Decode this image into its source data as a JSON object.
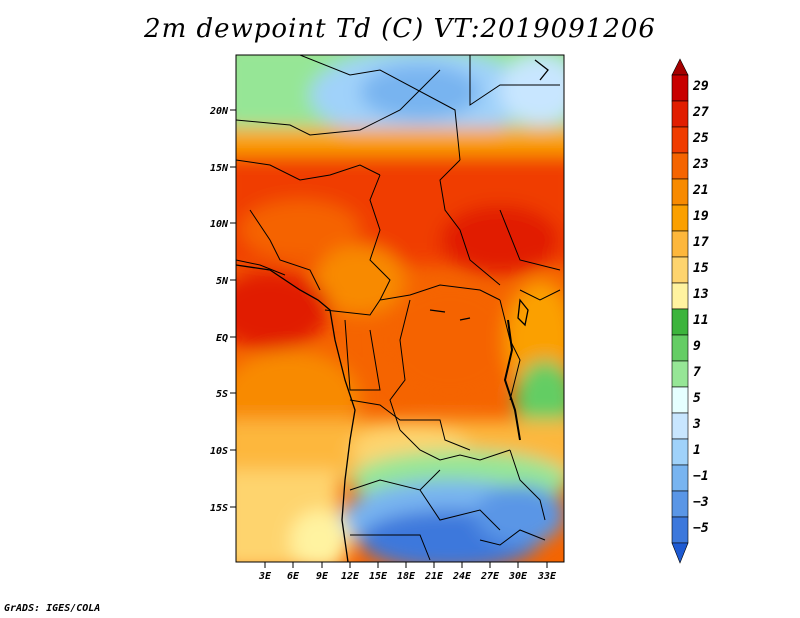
{
  "title": "2m dewpoint Td (C) VT:2019091206",
  "credit": "GrADS: IGES/COLA",
  "axes": {
    "lat_ticks": [
      "20N",
      "15N",
      "10N",
      "5N",
      "EQ",
      "5S",
      "10S",
      "15S"
    ],
    "lon_ticks": [
      "3E",
      "6E",
      "9E",
      "12E",
      "15E",
      "18E",
      "21E",
      "24E",
      "27E",
      "30E",
      "33E"
    ]
  },
  "colorbar": {
    "labels": [
      "29",
      "27",
      "25",
      "23",
      "21",
      "19",
      "17",
      "15",
      "13",
      "11",
      "9",
      "7",
      "5",
      "3",
      "1",
      "−1",
      "−3",
      "−5"
    ],
    "colors": [
      "#a50000",
      "#c80000",
      "#e11e00",
      "#f03c00",
      "#f56400",
      "#f88a00",
      "#fba000",
      "#fdb73c",
      "#fed46e",
      "#fff3a0",
      "#3cb43c",
      "#64cd64",
      "#96e696",
      "#e6ffff",
      "#c8e6ff",
      "#a0d2fa",
      "#78b4f0",
      "#5a96e6",
      "#3c78dc",
      "#1e5ad2"
    ]
  }
}
